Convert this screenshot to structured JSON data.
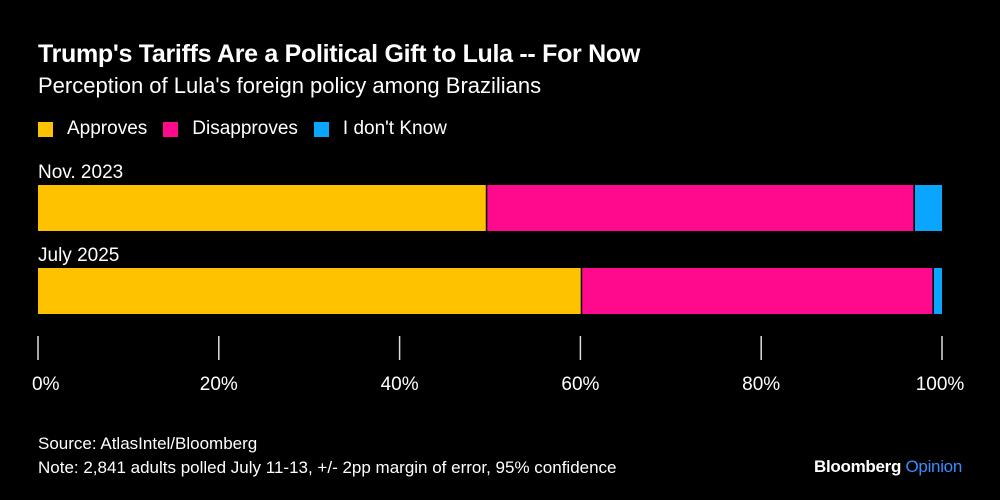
{
  "chart_data": {
    "type": "bar",
    "orientation": "horizontal",
    "stacked": true,
    "title": "Trump's Tariffs Are a Political Gift to Lula -- For Now",
    "subtitle": "Perception of Lula's foreign policy among Brazilians",
    "categories": [
      "Nov. 2023",
      "July 2025"
    ],
    "series": [
      {
        "name": "Approves",
        "color": "#ffc200",
        "values": [
          49.7,
          60.2
        ]
      },
      {
        "name": "Disapproves",
        "color": "#ff0a8c",
        "values": [
          47.3,
          38.9
        ]
      },
      {
        "name": "I don't Know",
        "color": "#0aa5ff",
        "values": [
          3.0,
          0.9
        ]
      }
    ],
    "xlim": [
      0,
      100
    ],
    "xticks": [
      "0%",
      "20%",
      "40%",
      "60%",
      "80%",
      "100%"
    ],
    "xtick_values": [
      0,
      20,
      40,
      60,
      80,
      100
    ],
    "legend_position": "top-left",
    "grid": false
  },
  "footer": {
    "source": "Source: AtlasIntel/Bloomberg",
    "note": "Note: 2,841 adults polled July 11-13, +/- 2pp margin of error, 95% confidence"
  },
  "brand": {
    "name": "Bloomberg",
    "section": "Opinion"
  }
}
